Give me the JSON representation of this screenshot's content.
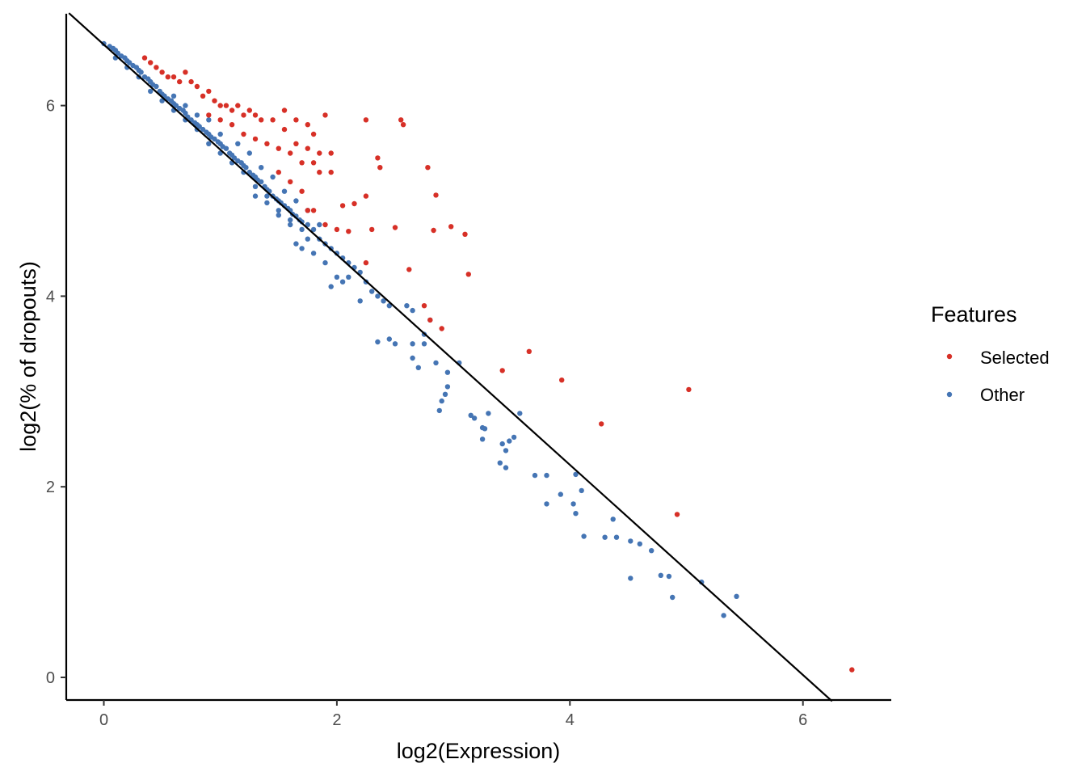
{
  "chart_data": {
    "type": "scatter",
    "xlabel": "log2(Expression)",
    "ylabel": "log2(% of dropouts)",
    "xlim": [
      -0.3,
      6.75
    ],
    "ylim": [
      -0.25,
      7.0
    ],
    "x_ticks": [
      0,
      2,
      4,
      6
    ],
    "y_ticks": [
      0,
      2,
      4,
      6
    ],
    "grid": false,
    "legend": {
      "title": "Features",
      "position": "right"
    },
    "reference_line": {
      "x1": -0.3,
      "y1": 6.97,
      "x2": 6.25,
      "y2": -0.25
    },
    "series": [
      {
        "name": "Selected",
        "color": "#D73027",
        "points": [
          [
            0.35,
            6.5
          ],
          [
            0.4,
            6.45
          ],
          [
            0.45,
            6.4
          ],
          [
            0.5,
            6.35
          ],
          [
            0.55,
            6.3
          ],
          [
            0.6,
            6.3
          ],
          [
            0.65,
            6.25
          ],
          [
            0.7,
            6.35
          ],
          [
            0.75,
            6.25
          ],
          [
            0.8,
            6.2
          ],
          [
            0.85,
            6.1
          ],
          [
            0.9,
            6.15
          ],
          [
            0.95,
            6.05
          ],
          [
            1.0,
            6.0
          ],
          [
            1.05,
            6.0
          ],
          [
            1.1,
            5.95
          ],
          [
            1.15,
            6.0
          ],
          [
            1.2,
            5.9
          ],
          [
            1.25,
            5.95
          ],
          [
            1.3,
            5.9
          ],
          [
            1.35,
            5.85
          ],
          [
            1.45,
            5.85
          ],
          [
            1.55,
            5.95
          ],
          [
            1.65,
            5.85
          ],
          [
            1.75,
            5.8
          ],
          [
            1.9,
            5.9
          ],
          [
            0.9,
            5.9
          ],
          [
            1.0,
            5.85
          ],
          [
            1.1,
            5.8
          ],
          [
            1.2,
            5.7
          ],
          [
            1.3,
            5.65
          ],
          [
            1.4,
            5.6
          ],
          [
            1.5,
            5.55
          ],
          [
            1.55,
            5.75
          ],
          [
            1.65,
            5.6
          ],
          [
            1.75,
            5.55
          ],
          [
            1.85,
            5.5
          ],
          [
            1.95,
            5.5
          ],
          [
            1.8,
            5.7
          ],
          [
            1.6,
            5.5
          ],
          [
            1.7,
            5.4
          ],
          [
            1.8,
            5.4
          ],
          [
            1.85,
            5.3
          ],
          [
            1.95,
            5.3
          ],
          [
            1.5,
            5.3
          ],
          [
            1.6,
            5.2
          ],
          [
            1.7,
            5.1
          ],
          [
            1.75,
            4.9
          ],
          [
            1.8,
            4.9
          ],
          [
            2.05,
            4.95
          ],
          [
            2.15,
            4.97
          ],
          [
            2.25,
            5.05
          ],
          [
            2.25,
            5.85
          ],
          [
            2.55,
            5.85
          ],
          [
            2.57,
            5.8
          ],
          [
            2.35,
            5.45
          ],
          [
            2.37,
            5.35
          ],
          [
            2.78,
            5.35
          ],
          [
            2.85,
            5.06
          ],
          [
            1.9,
            4.75
          ],
          [
            2.0,
            4.7
          ],
          [
            2.1,
            4.68
          ],
          [
            2.3,
            4.7
          ],
          [
            2.5,
            4.72
          ],
          [
            2.83,
            4.69
          ],
          [
            2.98,
            4.73
          ],
          [
            3.1,
            4.65
          ],
          [
            2.62,
            4.28
          ],
          [
            3.13,
            4.23
          ],
          [
            2.25,
            4.35
          ],
          [
            2.75,
            3.9
          ],
          [
            2.8,
            3.75
          ],
          [
            2.9,
            3.66
          ],
          [
            3.42,
            3.22
          ],
          [
            3.65,
            3.42
          ],
          [
            3.93,
            3.12
          ],
          [
            4.27,
            2.66
          ],
          [
            5.02,
            3.02
          ],
          [
            4.92,
            1.71
          ],
          [
            6.42,
            0.08
          ]
        ]
      },
      {
        "name": "Other",
        "color": "#4575B4",
        "points": [
          [
            0.0,
            6.65
          ],
          [
            0.05,
            6.62
          ],
          [
            0.08,
            6.6
          ],
          [
            0.1,
            6.58
          ],
          [
            0.12,
            6.55
          ],
          [
            0.15,
            6.52
          ],
          [
            0.18,
            6.5
          ],
          [
            0.2,
            6.47
          ],
          [
            0.22,
            6.45
          ],
          [
            0.25,
            6.42
          ],
          [
            0.28,
            6.4
          ],
          [
            0.3,
            6.37
          ],
          [
            0.32,
            6.35
          ],
          [
            0.35,
            6.3
          ],
          [
            0.38,
            6.28
          ],
          [
            0.4,
            6.25
          ],
          [
            0.42,
            6.22
          ],
          [
            0.45,
            6.2
          ],
          [
            0.48,
            6.15
          ],
          [
            0.5,
            6.12
          ],
          [
            0.52,
            6.1
          ],
          [
            0.55,
            6.07
          ],
          [
            0.58,
            6.05
          ],
          [
            0.6,
            6.02
          ],
          [
            0.62,
            6.0
          ],
          [
            0.65,
            5.97
          ],
          [
            0.68,
            5.95
          ],
          [
            0.7,
            5.92
          ],
          [
            0.72,
            5.88
          ],
          [
            0.75,
            5.85
          ],
          [
            0.78,
            5.82
          ],
          [
            0.8,
            5.8
          ],
          [
            0.82,
            5.78
          ],
          [
            0.85,
            5.75
          ],
          [
            0.88,
            5.72
          ],
          [
            0.9,
            5.7
          ],
          [
            0.92,
            5.67
          ],
          [
            0.95,
            5.65
          ],
          [
            0.98,
            5.62
          ],
          [
            1.0,
            5.6
          ],
          [
            1.02,
            5.57
          ],
          [
            1.05,
            5.55
          ],
          [
            1.08,
            5.5
          ],
          [
            1.1,
            5.48
          ],
          [
            1.12,
            5.45
          ],
          [
            1.15,
            5.42
          ],
          [
            1.18,
            5.4
          ],
          [
            1.2,
            5.37
          ],
          [
            1.22,
            5.35
          ],
          [
            1.25,
            5.3
          ],
          [
            1.28,
            5.27
          ],
          [
            1.3,
            5.25
          ],
          [
            1.32,
            5.22
          ],
          [
            1.35,
            5.2
          ],
          [
            1.38,
            5.15
          ],
          [
            1.4,
            5.12
          ],
          [
            1.42,
            5.1
          ],
          [
            1.45,
            5.05
          ],
          [
            1.48,
            5.02
          ],
          [
            1.5,
            5.0
          ],
          [
            1.52,
            4.98
          ],
          [
            1.55,
            4.95
          ],
          [
            1.58,
            4.92
          ],
          [
            1.6,
            4.9
          ],
          [
            1.62,
            4.86
          ],
          [
            1.65,
            4.84
          ],
          [
            1.68,
            4.8
          ],
          [
            1.7,
            4.78
          ],
          [
            1.75,
            4.75
          ],
          [
            1.8,
            4.7
          ],
          [
            0.1,
            6.5
          ],
          [
            0.2,
            6.4
          ],
          [
            0.3,
            6.3
          ],
          [
            0.4,
            6.15
          ],
          [
            0.5,
            6.05
          ],
          [
            0.6,
            5.95
          ],
          [
            0.7,
            5.85
          ],
          [
            0.8,
            5.75
          ],
          [
            0.9,
            5.6
          ],
          [
            1.0,
            5.5
          ],
          [
            1.1,
            5.4
          ],
          [
            1.2,
            5.3
          ],
          [
            1.3,
            5.15
          ],
          [
            1.4,
            5.05
          ],
          [
            1.5,
            4.9
          ],
          [
            1.6,
            4.8
          ],
          [
            1.7,
            4.7
          ],
          [
            0.6,
            6.1
          ],
          [
            0.7,
            6.0
          ],
          [
            0.8,
            5.9
          ],
          [
            0.9,
            5.85
          ],
          [
            1.0,
            5.7
          ],
          [
            1.15,
            5.6
          ],
          [
            1.25,
            5.5
          ],
          [
            1.35,
            5.35
          ],
          [
            1.45,
            5.25
          ],
          [
            1.55,
            5.1
          ],
          [
            1.65,
            5.0
          ],
          [
            1.75,
            4.9
          ],
          [
            1.85,
            4.6
          ],
          [
            1.9,
            4.55
          ],
          [
            1.95,
            4.5
          ],
          [
            2.0,
            4.45
          ],
          [
            2.05,
            4.4
          ],
          [
            2.1,
            4.35
          ],
          [
            2.15,
            4.3
          ],
          [
            2.2,
            4.25
          ],
          [
            1.85,
            4.75
          ],
          [
            1.75,
            4.6
          ],
          [
            1.65,
            4.55
          ],
          [
            1.7,
            4.5
          ],
          [
            1.8,
            4.45
          ],
          [
            1.9,
            4.35
          ],
          [
            2.0,
            4.2
          ],
          [
            1.95,
            4.1
          ],
          [
            2.05,
            4.15
          ],
          [
            2.1,
            4.2
          ],
          [
            2.25,
            4.15
          ],
          [
            2.3,
            4.05
          ],
          [
            2.35,
            4.0
          ],
          [
            2.2,
            3.95
          ],
          [
            2.4,
            3.95
          ],
          [
            2.45,
            3.9
          ],
          [
            2.6,
            3.9
          ],
          [
            2.65,
            3.85
          ],
          [
            2.8,
            3.75
          ],
          [
            2.75,
            3.6
          ],
          [
            2.45,
            3.55
          ],
          [
            2.5,
            3.5
          ],
          [
            2.35,
            3.52
          ],
          [
            2.65,
            3.5
          ],
          [
            2.75,
            3.5
          ],
          [
            2.65,
            3.35
          ],
          [
            2.7,
            3.25
          ],
          [
            2.85,
            3.3
          ],
          [
            3.05,
            3.3
          ],
          [
            2.95,
            3.2
          ],
          [
            2.95,
            3.05
          ],
          [
            2.93,
            2.97
          ],
          [
            2.9,
            2.9
          ],
          [
            2.88,
            2.8
          ],
          [
            3.15,
            2.75
          ],
          [
            3.18,
            2.72
          ],
          [
            3.3,
            2.77
          ],
          [
            3.25,
            2.62
          ],
          [
            3.27,
            2.61
          ],
          [
            3.25,
            2.5
          ],
          [
            3.42,
            2.45
          ],
          [
            3.48,
            2.48
          ],
          [
            3.45,
            2.38
          ],
          [
            3.52,
            2.52
          ],
          [
            3.57,
            2.77
          ],
          [
            3.4,
            2.25
          ],
          [
            3.45,
            2.2
          ],
          [
            3.7,
            2.12
          ],
          [
            3.8,
            2.12
          ],
          [
            3.8,
            1.82
          ],
          [
            3.92,
            1.92
          ],
          [
            4.03,
            1.82
          ],
          [
            4.05,
            1.72
          ],
          [
            4.05,
            2.13
          ],
          [
            4.1,
            1.96
          ],
          [
            4.12,
            1.48
          ],
          [
            4.3,
            1.47
          ],
          [
            4.37,
            1.66
          ],
          [
            4.4,
            1.47
          ],
          [
            4.52,
            1.43
          ],
          [
            4.6,
            1.4
          ],
          [
            4.7,
            1.33
          ],
          [
            4.52,
            1.04
          ],
          [
            4.78,
            1.07
          ],
          [
            4.85,
            1.06
          ],
          [
            4.88,
            0.84
          ],
          [
            5.13,
            1.0
          ],
          [
            5.32,
            0.65
          ],
          [
            5.43,
            0.85
          ],
          [
            1.4,
            4.98
          ],
          [
            1.5,
            4.85
          ],
          [
            1.6,
            4.75
          ],
          [
            1.3,
            5.05
          ]
        ]
      }
    ]
  }
}
